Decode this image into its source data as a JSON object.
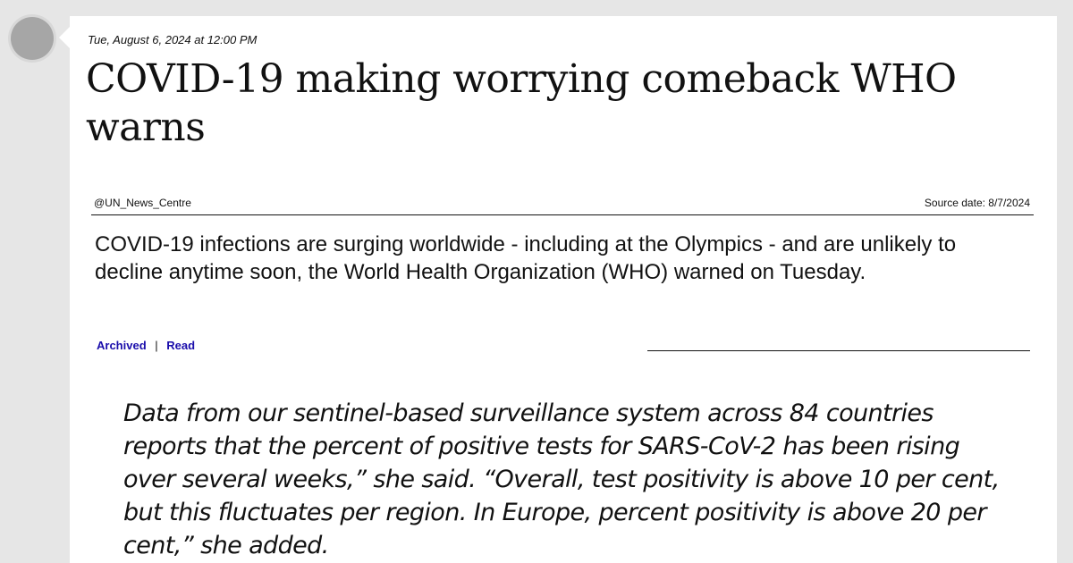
{
  "post": {
    "timestamp": "Tue, August 6, 2024 at 12:00 PM",
    "headline": "COVID-19 making worrying comeback WHO warns",
    "source_handle": "@UN_News_Centre",
    "source_date": "Source date: 8/7/2024",
    "summary": "COVID-19 infections are surging worldwide - including at the Olympics - and are unlikely to decline anytime soon, the World Health Organization (WHO) warned on Tuesday.",
    "actions": {
      "archived_label": "Archived",
      "separator": "|",
      "read_label": "Read"
    },
    "quote": "Data from our sentinel-based surveillance system across 84 countries reports that the percent of positive tests for SARS-CoV-2 has been rising over several weeks,” she said. “Overall, test positivity is above 10 per cent, but this fluctuates per region. In Europe, percent positivity is above 20 per cent,” she added."
  },
  "colors": {
    "background": "#e6e6e6",
    "card": "#ffffff",
    "link": "#1a0dab",
    "avatar": "#a6a6a6"
  }
}
